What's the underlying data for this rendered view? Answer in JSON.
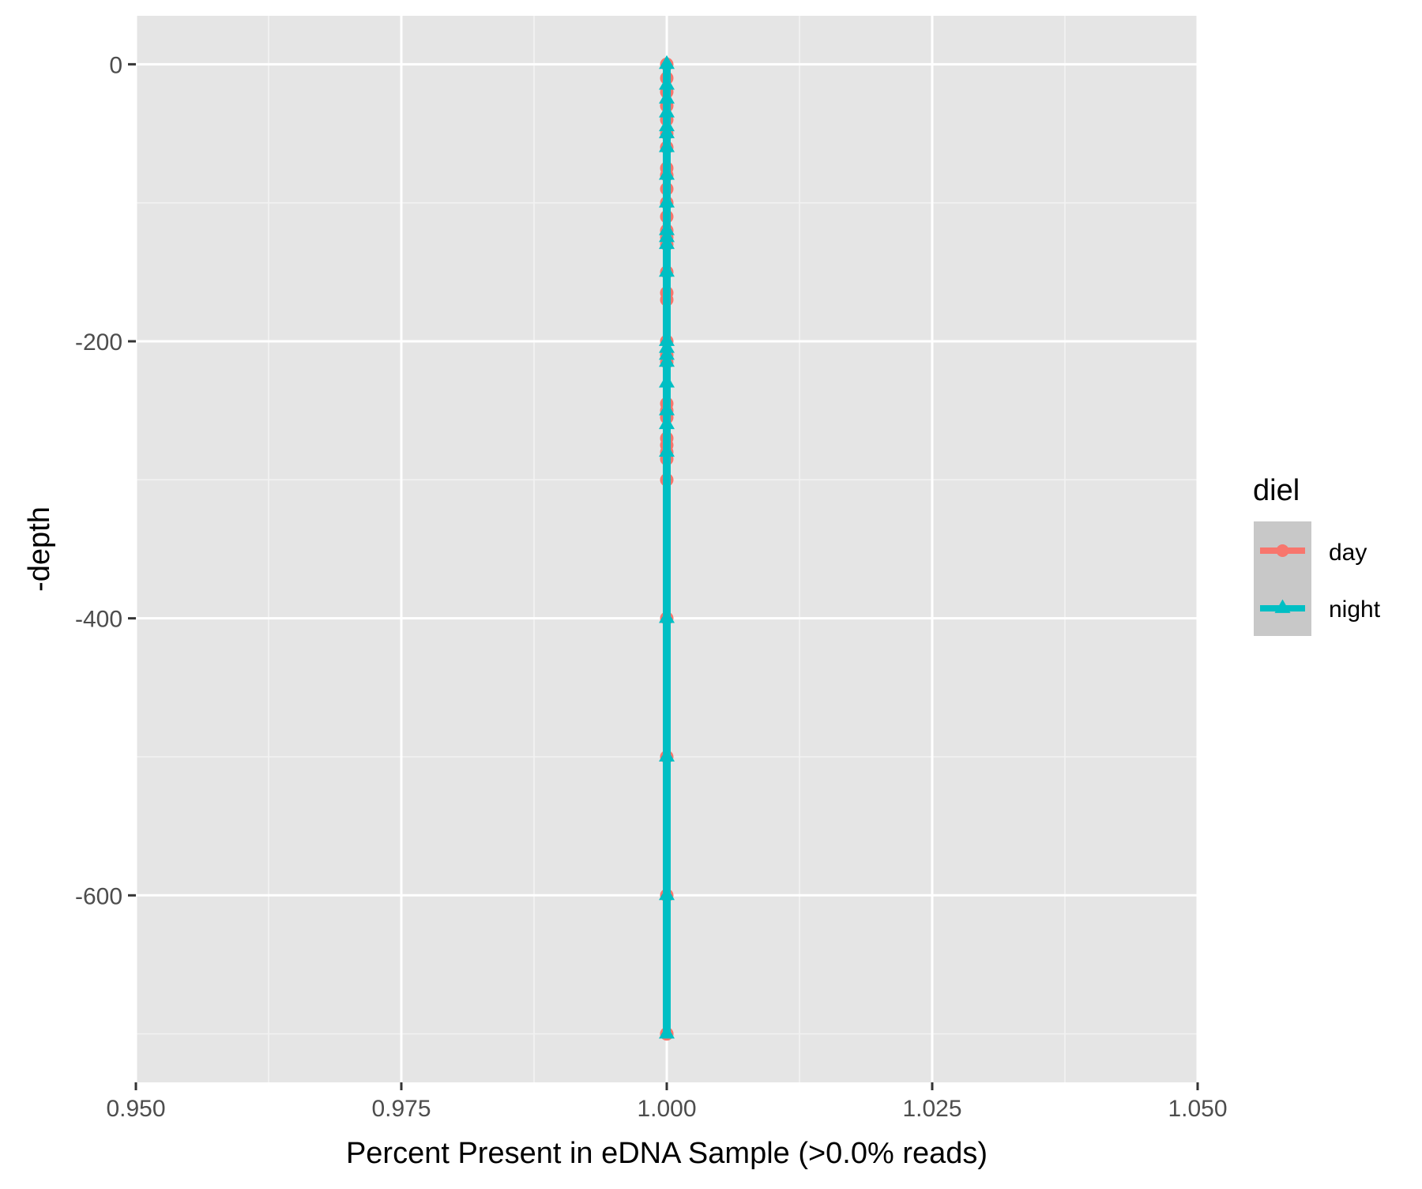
{
  "chart_data": {
    "type": "line",
    "xlabel": "Percent Present in eDNA Sample (>0.0% reads)",
    "ylabel": "-depth",
    "xlim": [
      0.95,
      1.05
    ],
    "ylim": [
      -735,
      35
    ],
    "x_ticks": [
      0.95,
      0.975,
      1.0,
      1.025,
      1.05
    ],
    "x_tick_labels": [
      "0.950",
      "0.975",
      "1.000",
      "1.025",
      "1.050"
    ],
    "y_ticks": [
      0,
      -200,
      -400,
      -600
    ],
    "y_tick_labels": [
      "0",
      "-200",
      "-400",
      "-600"
    ],
    "grid": true,
    "legend": {
      "title": "diel",
      "placement": "right",
      "entries": [
        "day",
        "night"
      ]
    },
    "series": [
      {
        "name": "day",
        "color": "#F8766D",
        "marker": "circle",
        "x": [
          1.0,
          1.0,
          1.0,
          1.0,
          1.0,
          1.0,
          1.0,
          1.0,
          1.0,
          1.0,
          1.0,
          1.0,
          1.0,
          1.0,
          1.0,
          1.0,
          1.0,
          1.0,
          1.0,
          1.0,
          1.0,
          1.0,
          1.0,
          1.0,
          1.0,
          1.0,
          1.0,
          1.0,
          1.0,
          1.0,
          1.0,
          1.0,
          1.0,
          1.0
        ],
        "y": [
          0,
          -10,
          -20,
          -30,
          -40,
          -50,
          -60,
          -75,
          -80,
          -90,
          -100,
          -110,
          -120,
          -125,
          -130,
          -150,
          -165,
          -170,
          -200,
          -210,
          -215,
          -245,
          -250,
          -255,
          -270,
          -275,
          -280,
          -285,
          -300,
          -400,
          -500,
          -600,
          -700,
          -700
        ]
      },
      {
        "name": "night",
        "color": "#00BFC4",
        "marker": "triangle",
        "x": [
          1.0,
          1.0,
          1.0,
          1.0,
          1.0,
          1.0,
          1.0,
          1.0,
          1.0,
          1.0,
          1.0,
          1.0,
          1.0,
          1.0,
          1.0,
          1.0,
          1.0,
          1.0,
          1.0,
          1.0,
          1.0,
          1.0,
          1.0,
          1.0,
          1.0
        ],
        "y": [
          0,
          -15,
          -25,
          -35,
          -45,
          -50,
          -60,
          -80,
          -100,
          -120,
          -125,
          -130,
          -150,
          -200,
          -205,
          -210,
          -215,
          -230,
          -250,
          -260,
          -280,
          -400,
          -500,
          -600,
          -700
        ]
      }
    ]
  },
  "colors": {
    "panel_background": "#E5E5E5",
    "grid_major": "#FFFFFF",
    "grid_minor": "#F2F2F2",
    "legend_key_background": "#C8C8C8",
    "axis_text": "#4D4D4D",
    "axis_title": "#000000",
    "tick": "#333333"
  }
}
